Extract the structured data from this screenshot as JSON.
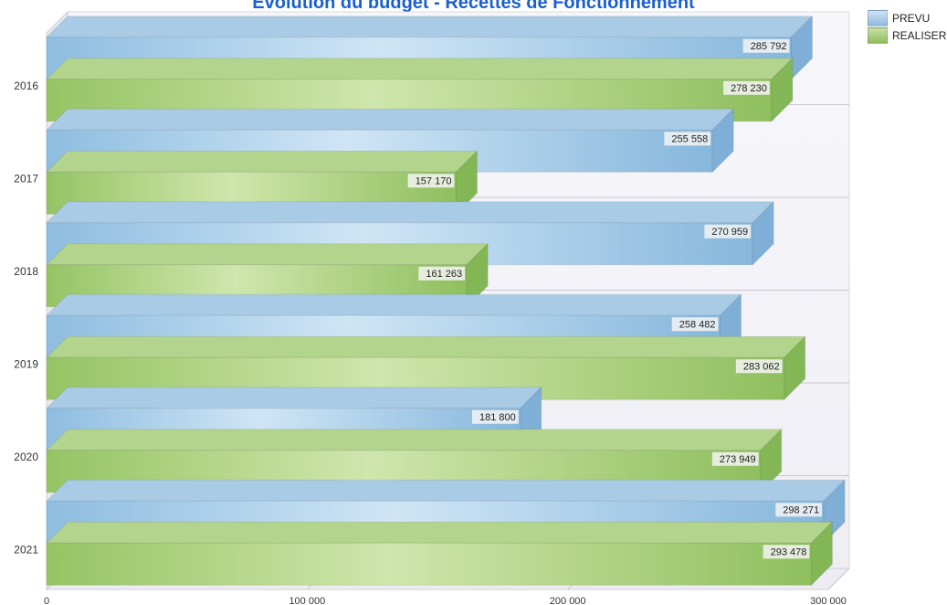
{
  "title": "Evolution du budget - Recettes de Fonctionnement",
  "legend": {
    "position": "top-right",
    "items": [
      {
        "label": "PREVU",
        "color": "#9ec6e6"
      },
      {
        "label": "REALISER",
        "color": "#a8cc7c"
      }
    ]
  },
  "chart_data": {
    "type": "bar",
    "orientation": "horizontal",
    "three_d": true,
    "title": "Evolution du budget - Recettes de Fonctionnement",
    "categories": [
      "2016",
      "2017",
      "2018",
      "2019",
      "2020",
      "2021"
    ],
    "series": [
      {
        "name": "PREVU",
        "values": [
          285792,
          255558,
          270959,
          258482,
          181800,
          298271
        ],
        "labels": [
          "285 792",
          "255 558",
          "270 959",
          "258 482",
          "181 800",
          "298 271"
        ],
        "color": "#9ec6e6"
      },
      {
        "name": "REALISER",
        "values": [
          278230,
          157170,
          161263,
          283062,
          273949,
          293478
        ],
        "labels": [
          "278 230",
          "157 170",
          "161 263",
          "283 062",
          "273 949",
          "293 478"
        ],
        "color": "#a8cc7c"
      }
    ],
    "xlim": [
      0,
      300000
    ],
    "xticks": [
      0,
      100000,
      200000,
      300000
    ],
    "xtick_labels": [
      "0",
      "100 000",
      "200 000",
      "300 000"
    ],
    "grid": true,
    "colors": {
      "prevu": "#9ec6e6",
      "realiser": "#a8cc7c",
      "title": "#1a5fd0"
    }
  }
}
